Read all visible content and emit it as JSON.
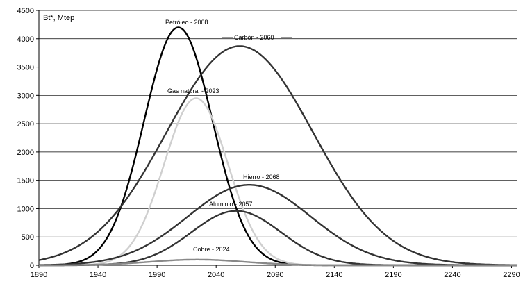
{
  "chart_data": {
    "type": "line",
    "unit_label": "Bt*, Mtep",
    "x_ticks": [
      1890,
      1940,
      1990,
      2040,
      2090,
      2140,
      2190,
      2240,
      2290
    ],
    "y_ticks": [
      0,
      500,
      1000,
      1500,
      2000,
      2500,
      3000,
      3500,
      4000,
      4500
    ],
    "xlim": [
      1890,
      2295
    ],
    "ylim": [
      0,
      4500
    ],
    "grid": "horizontal",
    "series": [
      {
        "name": "Petróleo - 2008",
        "peak_year": 2008,
        "peak_value": 4200,
        "width_years": 29,
        "color": "#000000"
      },
      {
        "name": "Carbón - 2060",
        "peak_year": 2060,
        "peak_value": 3870,
        "width_years": 62,
        "color": "#333333"
      },
      {
        "name": "Gas natural - 2023",
        "peak_year": 2023,
        "peak_value": 2950,
        "width_years": 27,
        "color": "#cfcfcf"
      },
      {
        "name": "Hierro - 2068",
        "peak_year": 2068,
        "peak_value": 1420,
        "width_years": 52,
        "color": "#333333"
      },
      {
        "name": "Aluminio - 2057",
        "peak_year": 2057,
        "peak_value": 960,
        "width_years": 38,
        "color": "#333333"
      },
      {
        "name": "Cobre - 2024",
        "peak_year": 2024,
        "peak_value": 100,
        "width_years": 40,
        "color": "#888888"
      }
    ],
    "labels": {
      "oil": "Petróleo - 2008",
      "coal": "Carbón - 2060",
      "gas": "Gas natural - 2023",
      "iron": "Hierro - 2068",
      "aluminium": "Aluminio - 2057",
      "copper": "Cobre - 2024"
    }
  }
}
